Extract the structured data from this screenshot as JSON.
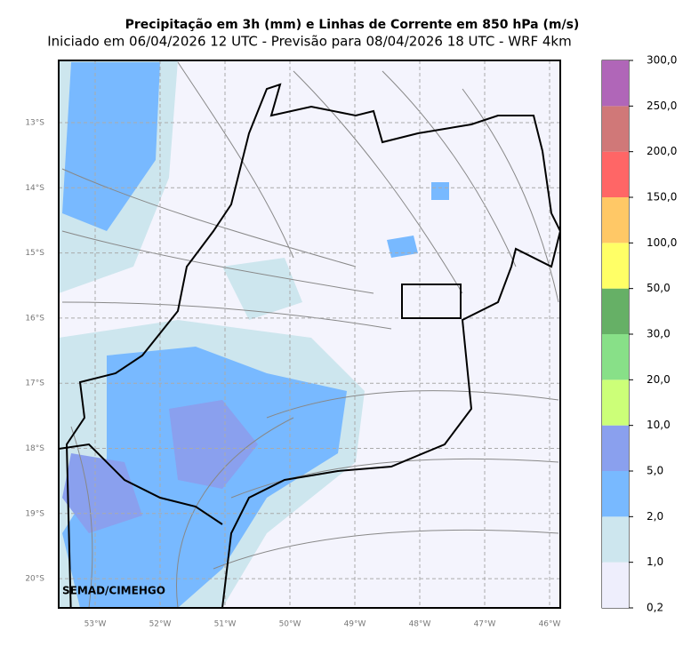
{
  "header": {
    "title": "Precipitação em 3h (mm) e Linhas de Corrente em 850 hPa (m/s)",
    "subtitle": "Iniciado em 06/04/2026 12 UTC - Previsão para 08/04/2026 18 UTC - WRF 4km"
  },
  "map": {
    "lat_labels": [
      "13°S",
      "14°S",
      "15°S",
      "16°S",
      "17°S",
      "18°S",
      "19°S",
      "20°S"
    ],
    "lon_labels": [
      "53°W",
      "52°W",
      "51°W",
      "50°W",
      "49°W",
      "48°W",
      "47°W",
      "46°W"
    ],
    "credit": "SEMAD/CIMEHGO"
  },
  "colorbar": {
    "labels": [
      "0,2",
      "1,0",
      "2,0",
      "5,0",
      "10,0",
      "20,0",
      "30,0",
      "50,0",
      "100,0",
      "150,0",
      "200,0",
      "250,0",
      "300,0"
    ],
    "colors": [
      "#eeeefc",
      "#cde6ee",
      "#78b9ff",
      "#8aa0ee",
      "#ccff78",
      "#88e088",
      "#66b066",
      "#ffff66",
      "#ffc866",
      "#ff6666",
      "#d07878",
      "#b066b8"
    ]
  }
}
